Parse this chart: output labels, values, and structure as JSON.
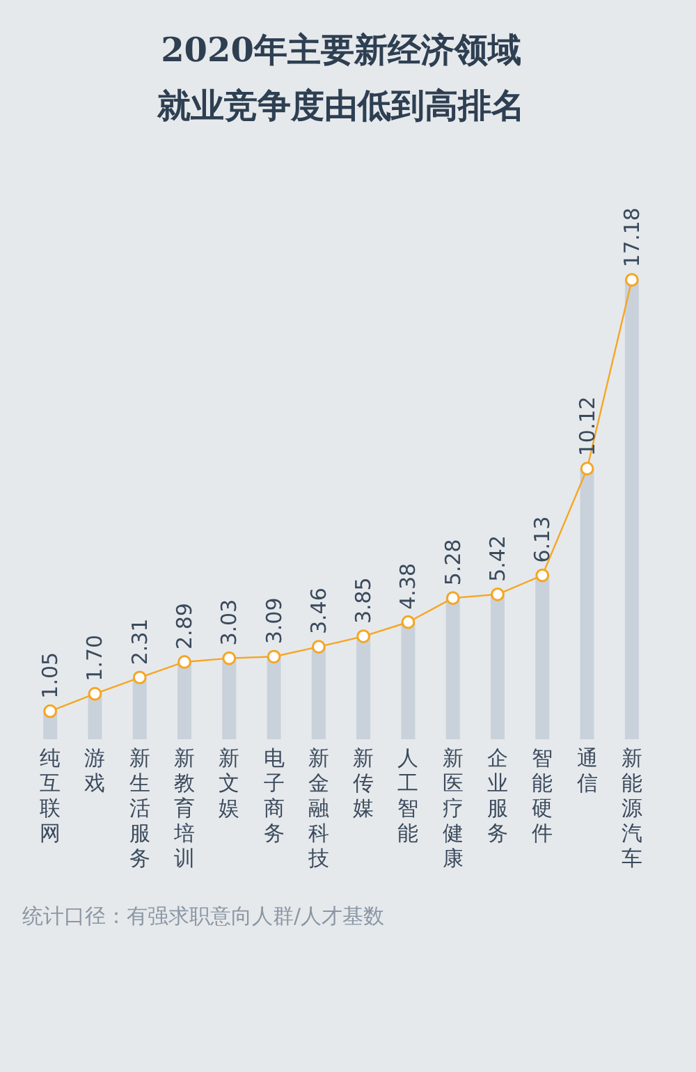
{
  "chart_data": {
    "type": "bar",
    "title": "2020年主要新经济领域就业竞争度由低到高排名",
    "categories": [
      "纯互联网",
      "游戏",
      "新生活服务",
      "新教育培训",
      "新文娱",
      "电子商务",
      "新金融科技",
      "新传媒",
      "人工智能",
      "新医疗健康",
      "企业服务",
      "智能硬件",
      "通信",
      "新能源汽车"
    ],
    "series": [
      {
        "color": "#c3ccd7",
        "values": [
          1.05,
          1.7,
          2.31,
          2.89,
          3.03,
          3.09,
          3.46,
          3.85,
          4.38,
          5.28,
          5.42,
          6.13,
          10.12,
          17.18
        ]
      },
      {
        "type": "line",
        "color": "#f5a623",
        "values": [
          1.05,
          1.7,
          2.31,
          2.89,
          3.03,
          3.09,
          3.46,
          3.85,
          4.38,
          5.28,
          5.42,
          6.13,
          10.12,
          17.18
        ],
        "value_labels": [
          "1.05",
          "1.70",
          "2.31",
          "2.89",
          "3.03",
          "3.09",
          "3.46",
          "3.85",
          "4.38",
          "5.28",
          "5.42",
          "6.13",
          "10.12",
          "17.18"
        ]
      }
    ],
    "marker": "circle",
    "grid": false,
    "annotations": [
      "统计口径：有强求职意向人群/人才基数"
    ]
  }
}
